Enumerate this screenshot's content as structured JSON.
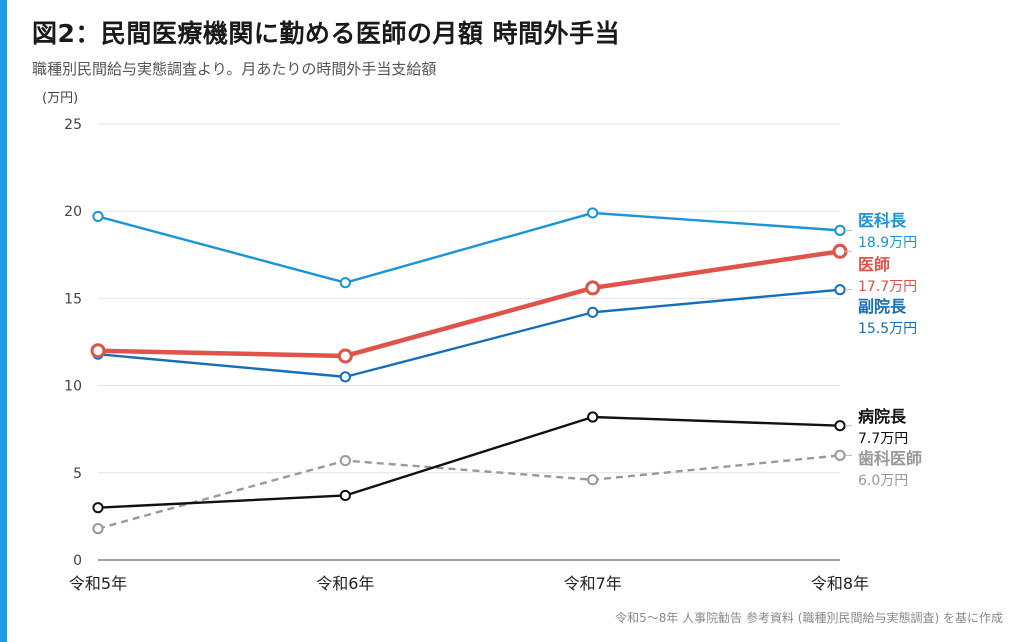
{
  "header": {
    "title": "図2：民間医療機関に勤める医師の月額 時間外手当",
    "subtitle": "職種別民間給与実態調査より。月あたりの時間外手当支給額"
  },
  "footer": {
    "source": "令和5〜8年 人事院勧告 参考資料 (職種別民間給与実態調査) を基に作成"
  },
  "colors": {
    "accent": "#1a9de0"
  },
  "chart_data": {
    "type": "line",
    "categories": [
      "令和5年",
      "令和6年",
      "令和7年",
      "令和8年"
    ],
    "ylabel": "(万円)",
    "ylim": [
      0,
      25
    ],
    "yticks": [
      "0",
      "5",
      "10",
      "15",
      "20",
      "25"
    ],
    "grid": true,
    "legend": "right (direct labels)",
    "series": [
      {
        "name": "医科長",
        "values": [
          19.7,
          15.9,
          19.9,
          18.9
        ],
        "color": "#1a95d8",
        "end_label": "18.9万円",
        "style": "solid",
        "emphasis": false
      },
      {
        "name": "医師",
        "values": [
          12.0,
          11.7,
          15.6,
          17.7
        ],
        "color": "#e0524a",
        "end_label": "17.7万円",
        "style": "solid",
        "emphasis": true
      },
      {
        "name": "副院長",
        "values": [
          11.8,
          10.5,
          14.2,
          15.5
        ],
        "color": "#156eb8",
        "end_label": "15.5万円",
        "style": "solid",
        "emphasis": false
      },
      {
        "name": "病院長",
        "values": [
          3.0,
          3.7,
          8.2,
          7.7
        ],
        "color": "#111111",
        "end_label": "7.7万円",
        "style": "solid",
        "emphasis": false
      },
      {
        "name": "歯科医師",
        "values": [
          1.8,
          5.7,
          4.6,
          6.0
        ],
        "color": "#999999",
        "end_label": "6.0万円",
        "style": "dashed",
        "emphasis": false
      }
    ]
  }
}
